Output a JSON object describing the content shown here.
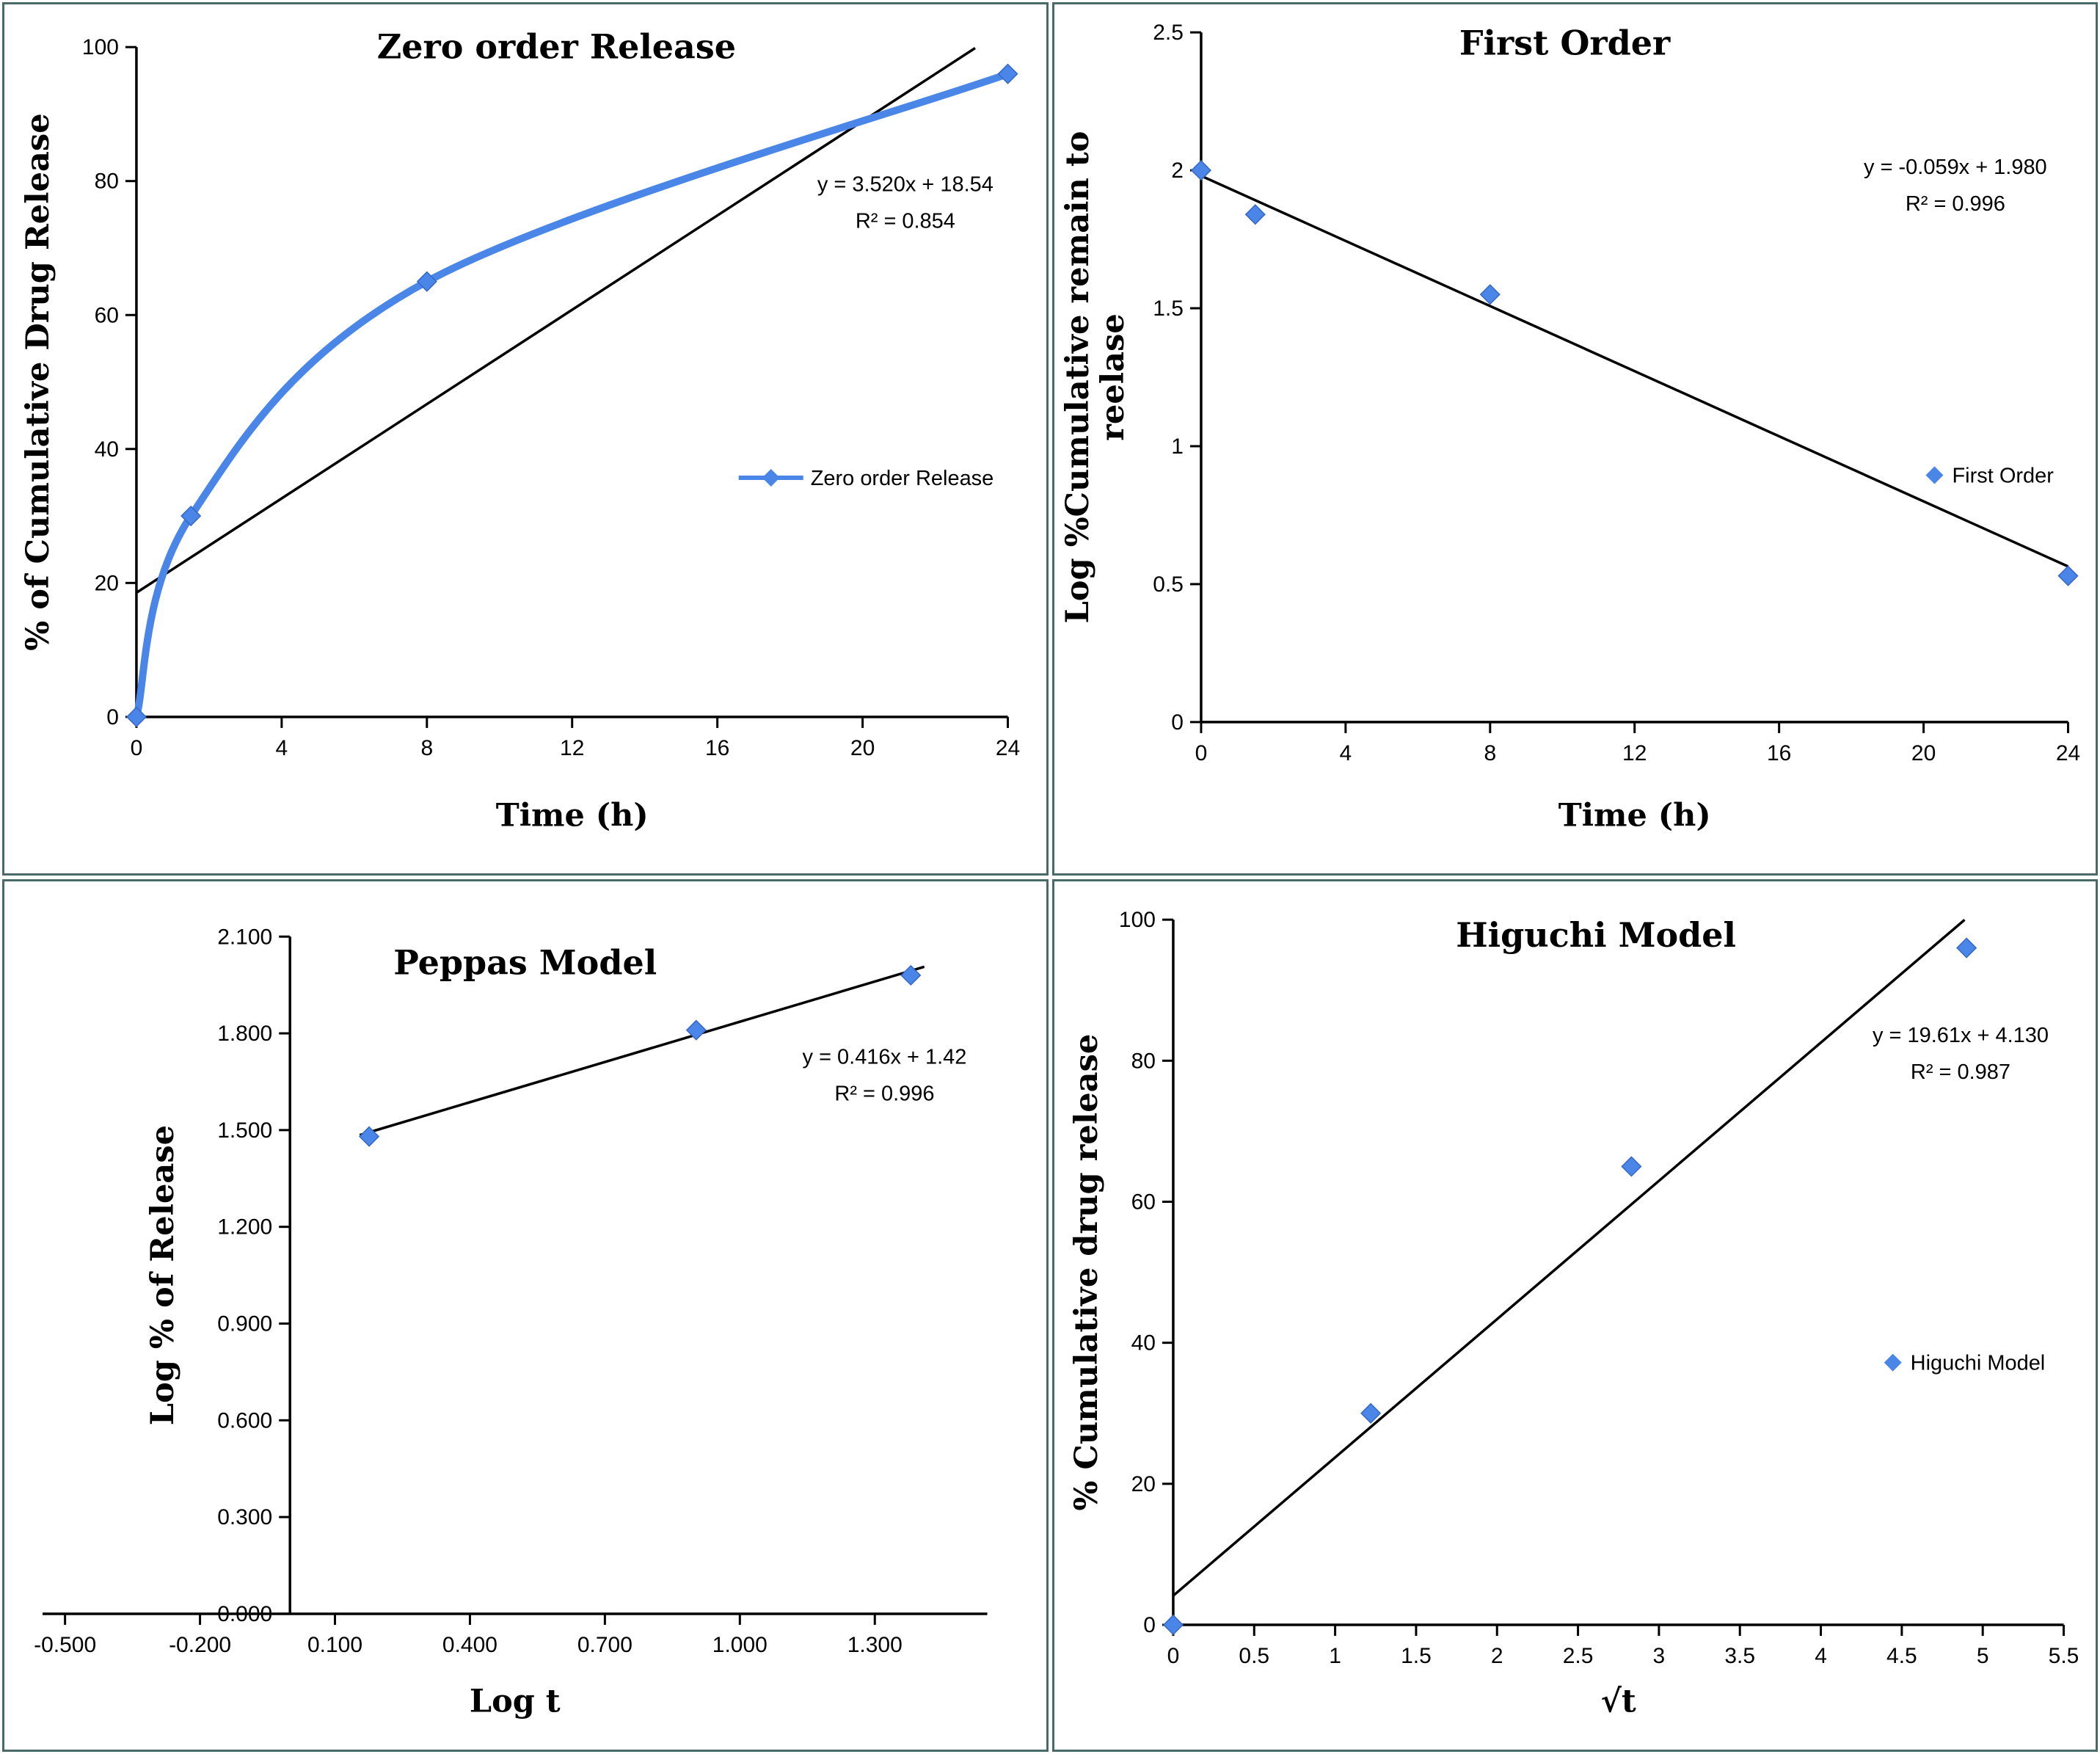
{
  "colors": {
    "background": "#ffffff",
    "panel_border": "#4a6a6a",
    "series_blue": "#4a86e8",
    "marker_edge": "#3567c6",
    "trendline": "#000000",
    "axis": "#000000"
  },
  "chart_data": [
    {
      "name": "zero-order-release",
      "type": "scatter",
      "title": "Zero order Release",
      "xlabel": "Time (h)",
      "ylabel_lines": [
        "% of Cumulative Drug Release"
      ],
      "x": [
        0,
        1.5,
        8,
        24
      ],
      "y": [
        0,
        30,
        65,
        96
      ],
      "smooth_series_line": true,
      "trendline": {
        "slope": 3.52,
        "intercept": 18.54,
        "x1": 0,
        "x2": 23.1
      },
      "equation_lines": [
        "y = 3.520x + 18.54",
        "R² = 0.854"
      ],
      "legend": {
        "label": "Zero order Release",
        "show_line": true,
        "pos": [
          0.705,
          0.545
        ]
      },
      "xlim": [
        0,
        24
      ],
      "ylim": [
        0,
        100
      ],
      "xticks": [
        0,
        4,
        8,
        12,
        16,
        20,
        24
      ],
      "xtick_labels": [
        "0",
        "4",
        "8",
        "12",
        "16",
        "20",
        "24"
      ],
      "yticks": [
        0,
        20,
        40,
        60,
        80,
        100
      ],
      "ytick_labels": [
        "0",
        "20",
        "40",
        "60",
        "80",
        "100"
      ],
      "layout": {
        "margins": {
          "l": 180,
          "r": 52,
          "t": 58,
          "b": 212
        },
        "title_pos": [
          0.53,
          0.062
        ],
        "eq_pos": [
          0.865,
          0.215
        ],
        "ylabel_x": 60,
        "xlabel_y": 1116
      }
    },
    {
      "name": "first-order",
      "type": "scatter",
      "title": "First Order",
      "xlabel": "Time (h)",
      "ylabel_lines": [
        "Log %Cumulative remain to",
        "reelase"
      ],
      "x": [
        0,
        1.5,
        8,
        24
      ],
      "y": [
        2.0,
        1.84,
        1.55,
        0.53
      ],
      "smooth_series_line": false,
      "trendline": {
        "slope": -0.059,
        "intercept": 1.98,
        "x1": 0,
        "x2": 24
      },
      "equation_lines": [
        "y = -0.059x + 1.980",
        "R² = 0.996"
      ],
      "legend": {
        "label": "First Order",
        "show_line": false,
        "pos": [
          0.845,
          0.542
        ]
      },
      "xlim": [
        0,
        24
      ],
      "ylim": [
        0,
        2.5
      ],
      "xticks": [
        0,
        4,
        8,
        12,
        16,
        20,
        24
      ],
      "xtick_labels": [
        "0",
        "4",
        "8",
        "12",
        "16",
        "20",
        "24"
      ],
      "yticks": [
        0,
        0.5,
        1,
        1.5,
        2,
        2.5
      ],
      "ytick_labels": [
        "0",
        "0.5",
        "1",
        "1.5",
        "2",
        "2.5"
      ],
      "layout": {
        "margins": {
          "l": 200,
          "r": 38,
          "t": 38,
          "b": 205
        },
        "title_pos": [
          0.49,
          0.058
        ],
        "eq_pos": [
          0.865,
          0.195
        ],
        "ylabel_x": 46,
        "xlabel_y": 1116
      }
    },
    {
      "name": "peppas-model",
      "type": "scatter",
      "title": "Peppas Model",
      "xlabel": "Log t",
      "ylabel_lines": [
        "Log % of Release"
      ],
      "x": [
        0.176,
        0.903,
        1.38
      ],
      "y": [
        1.48,
        1.81,
        1.98
      ],
      "smooth_series_line": false,
      "trendline": {
        "slope": 0.416,
        "intercept": 1.42,
        "x1": 0.155,
        "x2": 1.41
      },
      "equation_lines": [
        "y = 0.416x + 1.42",
        "R² = 0.996"
      ],
      "legend": null,
      "xlim": [
        -0.55,
        1.55
      ],
      "ylim": [
        0,
        2.1
      ],
      "xticks": [
        -0.5,
        -0.2,
        0.1,
        0.4,
        0.7,
        1.0,
        1.3
      ],
      "xtick_labels": [
        "-0.500",
        "-0.200",
        "0.100",
        "0.400",
        "0.700",
        "1.000",
        "1.300"
      ],
      "yticks": [
        0,
        0.3,
        0.6,
        0.9,
        1.2,
        1.5,
        1.8,
        2.1
      ],
      "ytick_labels": [
        "0.000",
        "0.300",
        "0.600",
        "0.900",
        "1.200",
        "1.500",
        "1.800",
        "2.100"
      ],
      "layout": {
        "margins": {
          "l": 52,
          "r": 80,
          "t": 75,
          "b": 185
        },
        "yaxis_at": 0,
        "title_pos": [
          0.5,
          0.107
        ],
        "eq_pos": [
          0.845,
          0.21
        ],
        "ylabel_x": 230,
        "xlabel_y": 1128
      }
    },
    {
      "name": "higuchi-model",
      "type": "scatter",
      "title": "Higuchi Model",
      "xlabel": "√t",
      "ylabel_lines": [
        "% Cumulative drug release"
      ],
      "x": [
        0,
        1.22,
        2.83,
        4.9
      ],
      "y": [
        0,
        30,
        65,
        96
      ],
      "smooth_series_line": false,
      "trendline": {
        "slope": 19.61,
        "intercept": 4.13,
        "x1": 0,
        "x2": 4.888
      },
      "equation_lines": [
        "y = 19.61x + 4.130",
        "R² = 0.987"
      ],
      "legend": {
        "label": "Higuchi Model",
        "show_line": false,
        "pos": [
          0.805,
          0.554
        ]
      },
      "xlim": [
        0,
        5.5
      ],
      "ylim": [
        0,
        100
      ],
      "xticks": [
        0,
        0.5,
        1,
        1.5,
        2,
        2.5,
        3,
        3.5,
        4,
        4.5,
        5,
        5.5
      ],
      "xtick_labels": [
        "0",
        "0.5",
        "1",
        "1.5",
        "2",
        "2.5",
        "3",
        "3.5",
        "4",
        "4.5",
        "5",
        "5.5"
      ],
      "yticks": [
        0,
        20,
        40,
        60,
        80,
        100
      ],
      "ytick_labels": [
        "0",
        "20",
        "40",
        "60",
        "80",
        "100"
      ],
      "layout": {
        "margins": {
          "l": 162,
          "r": 44,
          "t": 52,
          "b": 170
        },
        "title_pos": [
          0.52,
          0.075
        ],
        "eq_pos": [
          0.87,
          0.185
        ],
        "ylabel_x": 58,
        "xlabel_y": 1128
      }
    }
  ]
}
